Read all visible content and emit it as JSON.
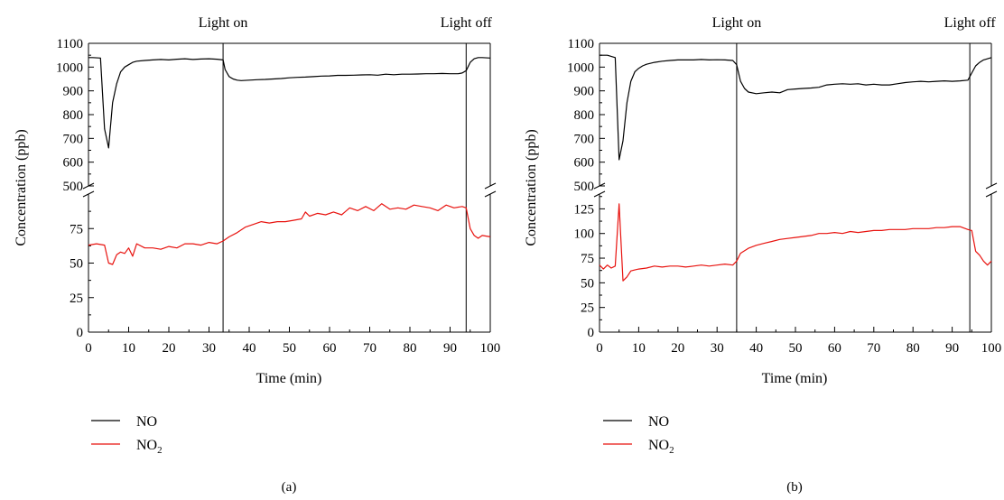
{
  "chart_data": [
    {
      "type": "line",
      "panel_label": "(a)",
      "xlabel": "Time (min)",
      "ylabel": "Concentration (ppb)",
      "xlim": [
        0,
        100
      ],
      "x_ticks": [
        0,
        10,
        20,
        30,
        40,
        50,
        60,
        70,
        80,
        90,
        100
      ],
      "y_upper_range": [
        500,
        1100
      ],
      "y_upper_ticks": [
        500,
        600,
        700,
        800,
        900,
        1000,
        1100
      ],
      "y_lower_range": [
        0,
        100
      ],
      "y_lower_ticks": [
        0,
        25,
        50,
        75
      ],
      "axis_break": true,
      "grid": false,
      "events": [
        {
          "label": "Light on",
          "x": 33.5
        },
        {
          "label": "Light off",
          "x": 94
        }
      ],
      "legend_position": "bottom-left",
      "series": [
        {
          "name": "NO",
          "color": "#000000",
          "axis": "upper",
          "x": [
            0,
            1,
            3,
            4,
            5,
            6,
            7,
            8,
            9,
            10,
            11,
            12,
            14,
            16,
            18,
            20,
            22,
            24,
            26,
            28,
            30,
            32,
            33.5,
            34,
            35,
            36,
            37,
            38,
            40,
            42,
            44,
            46,
            48,
            50,
            52,
            54,
            56,
            58,
            60,
            62,
            64,
            66,
            68,
            70,
            72,
            74,
            76,
            78,
            80,
            82,
            84,
            86,
            88,
            90,
            92,
            93,
            94,
            95,
            96,
            97,
            98,
            100
          ],
          "y": [
            1040,
            1040,
            1038,
            740,
            660,
            850,
            930,
            980,
            1000,
            1010,
            1020,
            1025,
            1028,
            1030,
            1032,
            1030,
            1033,
            1035,
            1032,
            1034,
            1035,
            1033,
            1030,
            990,
            960,
            950,
            945,
            943,
            945,
            947,
            948,
            950,
            952,
            955,
            957,
            958,
            960,
            962,
            963,
            965,
            965,
            966,
            967,
            968,
            966,
            970,
            968,
            970,
            970,
            971,
            972,
            972,
            973,
            972,
            972,
            975,
            985,
            1020,
            1035,
            1040,
            1040,
            1038
          ]
        },
        {
          "name": "NO2",
          "color": "#e8130f",
          "axis": "lower",
          "x": [
            0,
            2,
            4,
            5,
            6,
            7,
            8,
            9,
            10,
            11,
            12,
            14,
            16,
            18,
            20,
            22,
            24,
            26,
            28,
            30,
            32,
            33.5,
            35,
            37,
            39,
            41,
            43,
            45,
            47,
            49,
            51,
            53,
            54,
            55,
            57,
            59,
            61,
            63,
            65,
            67,
            69,
            71,
            73,
            75,
            77,
            79,
            81,
            83,
            85,
            87,
            89,
            91,
            93,
            94,
            95,
            96,
            97,
            98,
            100
          ],
          "y": [
            63,
            64,
            63,
            50,
            49,
            56,
            58,
            57,
            61,
            55,
            64,
            61,
            61,
            60,
            62,
            61,
            64,
            64,
            63,
            65,
            64,
            66,
            69,
            72,
            76,
            78,
            80,
            79,
            80,
            80,
            81,
            82,
            87,
            84,
            86,
            85,
            87,
            85,
            90,
            88,
            91,
            88,
            93,
            89,
            90,
            89,
            92,
            91,
            90,
            88,
            92,
            90,
            91,
            90,
            75,
            70,
            68,
            70,
            69
          ]
        }
      ]
    },
    {
      "type": "line",
      "panel_label": "(b)",
      "xlabel": "Time (min)",
      "ylabel": "Concentration (ppb)",
      "xlim": [
        0,
        100
      ],
      "x_ticks": [
        0,
        10,
        20,
        30,
        40,
        50,
        60,
        70,
        80,
        90,
        100
      ],
      "y_upper_range": [
        500,
        1100
      ],
      "y_upper_ticks": [
        500,
        600,
        700,
        800,
        900,
        1000,
        1100
      ],
      "y_lower_range": [
        0,
        140
      ],
      "y_lower_ticks": [
        0,
        25,
        50,
        75,
        100,
        125
      ],
      "axis_break": true,
      "grid": false,
      "events": [
        {
          "label": "Light on",
          "x": 35
        },
        {
          "label": "Light off",
          "x": 94.5
        }
      ],
      "legend_position": "bottom-left",
      "series": [
        {
          "name": "NO",
          "color": "#000000",
          "axis": "upper",
          "x": [
            0,
            2,
            4,
            5,
            6,
            7,
            8,
            9,
            10,
            11,
            12,
            14,
            16,
            18,
            20,
            22,
            24,
            26,
            28,
            30,
            32,
            34,
            35,
            36,
            37,
            38,
            40,
            42,
            44,
            46,
            48,
            50,
            52,
            54,
            56,
            58,
            60,
            62,
            64,
            66,
            68,
            70,
            72,
            74,
            76,
            78,
            80,
            82,
            84,
            86,
            88,
            90,
            92,
            94,
            95,
            96,
            97,
            98,
            100
          ],
          "y": [
            1050,
            1050,
            1040,
            610,
            690,
            850,
            940,
            980,
            995,
            1005,
            1012,
            1020,
            1025,
            1028,
            1030,
            1030,
            1030,
            1032,
            1030,
            1031,
            1030,
            1028,
            1010,
            940,
            910,
            895,
            888,
            892,
            895,
            892,
            905,
            908,
            910,
            912,
            915,
            925,
            928,
            930,
            928,
            930,
            925,
            928,
            925,
            925,
            930,
            935,
            938,
            940,
            938,
            940,
            942,
            940,
            942,
            945,
            975,
            1005,
            1020,
            1030,
            1040
          ]
        },
        {
          "name": "NO2",
          "color": "#e8130f",
          "axis": "lower",
          "x": [
            0,
            1,
            2,
            3,
            4,
            5,
            6,
            7,
            8,
            9,
            10,
            12,
            14,
            16,
            18,
            20,
            22,
            24,
            26,
            28,
            30,
            32,
            34,
            35,
            36,
            38,
            40,
            42,
            44,
            46,
            48,
            50,
            52,
            54,
            56,
            58,
            60,
            62,
            64,
            66,
            68,
            70,
            72,
            74,
            76,
            78,
            80,
            82,
            84,
            86,
            88,
            90,
            92,
            94,
            95,
            96,
            97,
            98,
            99,
            100
          ],
          "y": [
            68,
            64,
            68,
            65,
            67,
            130,
            52,
            56,
            62,
            63,
            64,
            65,
            67,
            66,
            67,
            67,
            66,
            67,
            68,
            67,
            68,
            69,
            68,
            72,
            80,
            85,
            88,
            90,
            92,
            94,
            95,
            96,
            97,
            98,
            100,
            100,
            101,
            100,
            102,
            101,
            102,
            103,
            103,
            104,
            104,
            104,
            105,
            105,
            105,
            106,
            106,
            107,
            107,
            104,
            103,
            82,
            78,
            72,
            68,
            72
          ]
        }
      ]
    }
  ],
  "legend": {
    "no_label": "NO",
    "no2_main": "NO",
    "no2_sub": "2"
  }
}
